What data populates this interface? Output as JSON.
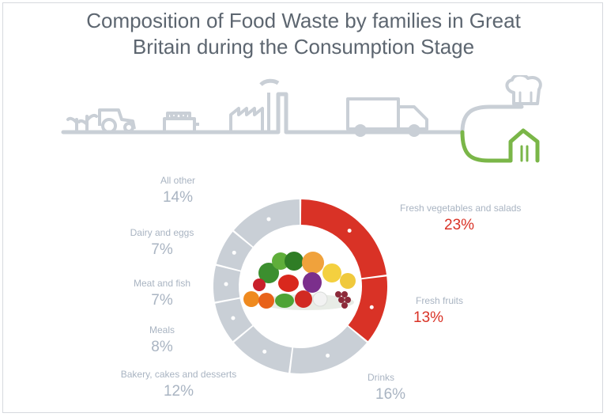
{
  "title": {
    "line1": "Composition of Food Waste by families in Great",
    "line2": "Britain during the Consumption Stage"
  },
  "colors": {
    "highlight": "#d93226",
    "muted": "#c9cfd6",
    "pipeline_gray": "#c9cfd6",
    "pipeline_green": "#7ab648",
    "title": "#5d6670"
  },
  "chart_data": {
    "type": "pie",
    "style": "donut",
    "title": "Composition of Food Waste by families in Great Britain during the Consumption Stage",
    "slices": [
      {
        "label": "Fresh vegetables and salads",
        "value": 23,
        "display": "23%",
        "highlight": true
      },
      {
        "label": "Fresh fruits",
        "value": 13,
        "display": "13%",
        "highlight": true
      },
      {
        "label": "Drinks",
        "value": 16,
        "display": "16%",
        "highlight": false
      },
      {
        "label": "Bakery, cakes and desserts",
        "value": 12,
        "display": "12%",
        "highlight": false
      },
      {
        "label": "Meals",
        "value": 8,
        "display": "8%",
        "highlight": false
      },
      {
        "label": "Meat and fish",
        "value": 7,
        "display": "7%",
        "highlight": false
      },
      {
        "label": "Dairy and eggs",
        "value": 7,
        "display": "7%",
        "highlight": false
      },
      {
        "label": "All other",
        "value": 14,
        "display": "14%",
        "highlight": false
      }
    ]
  },
  "center_image": "fruits-and-vegetables-icon",
  "pipeline_icons": [
    "farm-sprout-icon",
    "tractor-icon",
    "processing-machine-icon",
    "factory-icon",
    "truck-icon",
    "house-icon",
    "chef-hat-icon",
    "fork-knife-icon"
  ]
}
